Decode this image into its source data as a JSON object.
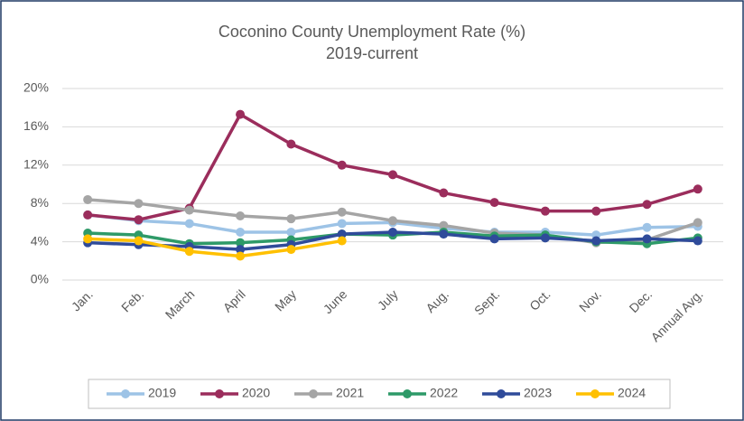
{
  "chart_data": {
    "type": "line",
    "title": "Coconino County Unemployment Rate (%)",
    "subtitle": "2019-current",
    "categories": [
      "Jan.",
      "Feb.",
      "March",
      "April",
      "May",
      "June",
      "July",
      "Aug.",
      "Sept.",
      "Oct.",
      "Nov.",
      "Dec.",
      "Annual Avg."
    ],
    "series": [
      {
        "name": "2019",
        "color": "#9dc3e6",
        "values": [
          6.8,
          6.2,
          5.9,
          5.0,
          5.0,
          5.9,
          6.0,
          5.4,
          5.0,
          5.0,
          4.7,
          5.5,
          5.6
        ]
      },
      {
        "name": "2020",
        "color": "#9b2d5c",
        "values": [
          6.8,
          6.3,
          7.5,
          17.3,
          14.2,
          12.0,
          11.0,
          9.1,
          8.1,
          7.2,
          7.2,
          7.9,
          9.5
        ]
      },
      {
        "name": "2021",
        "color": "#a5a5a5",
        "values": [
          8.4,
          8.0,
          7.3,
          6.7,
          6.4,
          7.1,
          6.2,
          5.7,
          4.9,
          4.7,
          3.9,
          4.2,
          6.0
        ]
      },
      {
        "name": "2022",
        "color": "#2e9a68",
        "values": [
          4.9,
          4.7,
          3.8,
          3.9,
          4.2,
          4.8,
          4.7,
          5.0,
          4.6,
          4.7,
          4.0,
          3.8,
          4.4
        ]
      },
      {
        "name": "2023",
        "color": "#2f4b9a",
        "values": [
          3.9,
          3.7,
          3.5,
          3.2,
          3.7,
          4.8,
          5.0,
          4.8,
          4.3,
          4.4,
          4.1,
          4.3,
          4.1
        ]
      },
      {
        "name": "2024",
        "color": "#ffc000",
        "values": [
          4.3,
          4.1,
          3.0,
          2.5,
          3.2,
          4.1,
          null,
          null,
          null,
          null,
          null,
          null,
          null
        ]
      }
    ],
    "ylim": [
      0,
      20
    ],
    "yticks": [
      {
        "value": 0,
        "label": "0%"
      },
      {
        "value": 4,
        "label": "4%"
      },
      {
        "value": 8,
        "label": "8%"
      },
      {
        "value": 12,
        "label": "12%"
      },
      {
        "value": 16,
        "label": "16%"
      },
      {
        "value": 20,
        "label": "20%"
      }
    ],
    "grid": true,
    "legend": "bottom"
  }
}
